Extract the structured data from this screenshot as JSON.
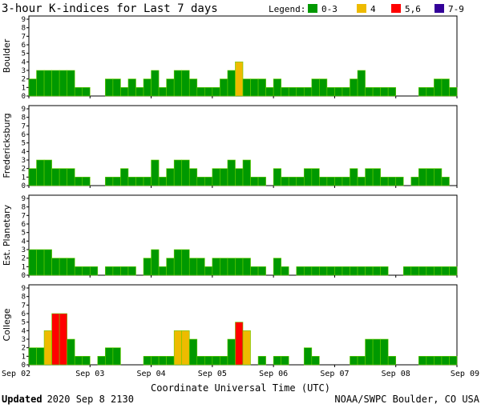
{
  "chart_data": {
    "type": "bar",
    "title": "3-hour K-indices for Last 7 days",
    "legend": {
      "label": "Legend:",
      "entries": [
        {
          "label": "0-3",
          "color": "#009900"
        },
        {
          "label": "4",
          "color": "#eebb00"
        },
        {
          "label": "5,6",
          "color": "#ff0000"
        },
        {
          "label": "7-9",
          "color": "#330099"
        }
      ]
    },
    "xlabel": "Coordinate Universal Time (UTC)",
    "x_ticks": [
      "Sep 02",
      "Sep 03",
      "Sep 04",
      "Sep 05",
      "Sep 06",
      "Sep 07",
      "Sep 08",
      "Sep 09"
    ],
    "ylim": [
      0,
      9
    ],
    "y_ticks": [
      0,
      1,
      2,
      3,
      4,
      5,
      6,
      7,
      8,
      9
    ],
    "grid": false,
    "series": [
      {
        "name": "Boulder",
        "values": [
          2,
          3,
          3,
          3,
          3,
          3,
          1,
          1,
          0,
          0,
          2,
          2,
          1,
          2,
          1,
          2,
          3,
          1,
          2,
          3,
          3,
          2,
          1,
          1,
          1,
          2,
          3,
          4,
          2,
          2,
          2,
          1,
          2,
          1,
          1,
          1,
          1,
          2,
          2,
          1,
          1,
          1,
          2,
          3,
          1,
          1,
          1,
          1,
          0,
          0,
          0,
          1,
          1,
          2,
          2,
          1,
          0
        ]
      },
      {
        "name": "Fredericksburg",
        "values": [
          2,
          3,
          3,
          2,
          2,
          2,
          1,
          1,
          0,
          0,
          1,
          1,
          2,
          1,
          1,
          1,
          3,
          1,
          2,
          3,
          3,
          2,
          1,
          1,
          2,
          2,
          3,
          2,
          3,
          1,
          1,
          0,
          2,
          1,
          1,
          1,
          2,
          2,
          1,
          1,
          1,
          1,
          2,
          1,
          2,
          2,
          1,
          1,
          1,
          0,
          1,
          2,
          2,
          2,
          1,
          0,
          0
        ]
      },
      {
        "name": "Est. Planetary",
        "values": [
          3,
          3,
          3,
          2,
          2,
          2,
          1,
          1,
          1,
          0,
          1,
          1,
          1,
          1,
          0,
          2,
          3,
          1,
          2,
          3,
          3,
          2,
          2,
          1,
          2,
          2,
          2,
          2,
          2,
          1,
          1,
          0,
          2,
          1,
          0,
          1,
          1,
          1,
          1,
          1,
          1,
          1,
          1,
          1,
          1,
          1,
          1,
          0,
          0,
          1,
          1,
          1,
          1,
          1,
          1,
          1,
          0
        ]
      },
      {
        "name": "College",
        "values": [
          2,
          2,
          4,
          6,
          6,
          3,
          1,
          1,
          0,
          1,
          2,
          2,
          0,
          0,
          0,
          1,
          1,
          1,
          1,
          4,
          4,
          3,
          1,
          1,
          1,
          1,
          3,
          5,
          4,
          0,
          1,
          0,
          1,
          1,
          0,
          0,
          2,
          1,
          0,
          0,
          0,
          0,
          1,
          1,
          3,
          3,
          3,
          1,
          0,
          0,
          0,
          1,
          1,
          1,
          1,
          1,
          0
        ]
      }
    ]
  },
  "footer": {
    "updated_label": "Updated",
    "updated_value": "2020 Sep  8 2130",
    "credit": "NOAA/SWPC Boulder, CO USA"
  }
}
